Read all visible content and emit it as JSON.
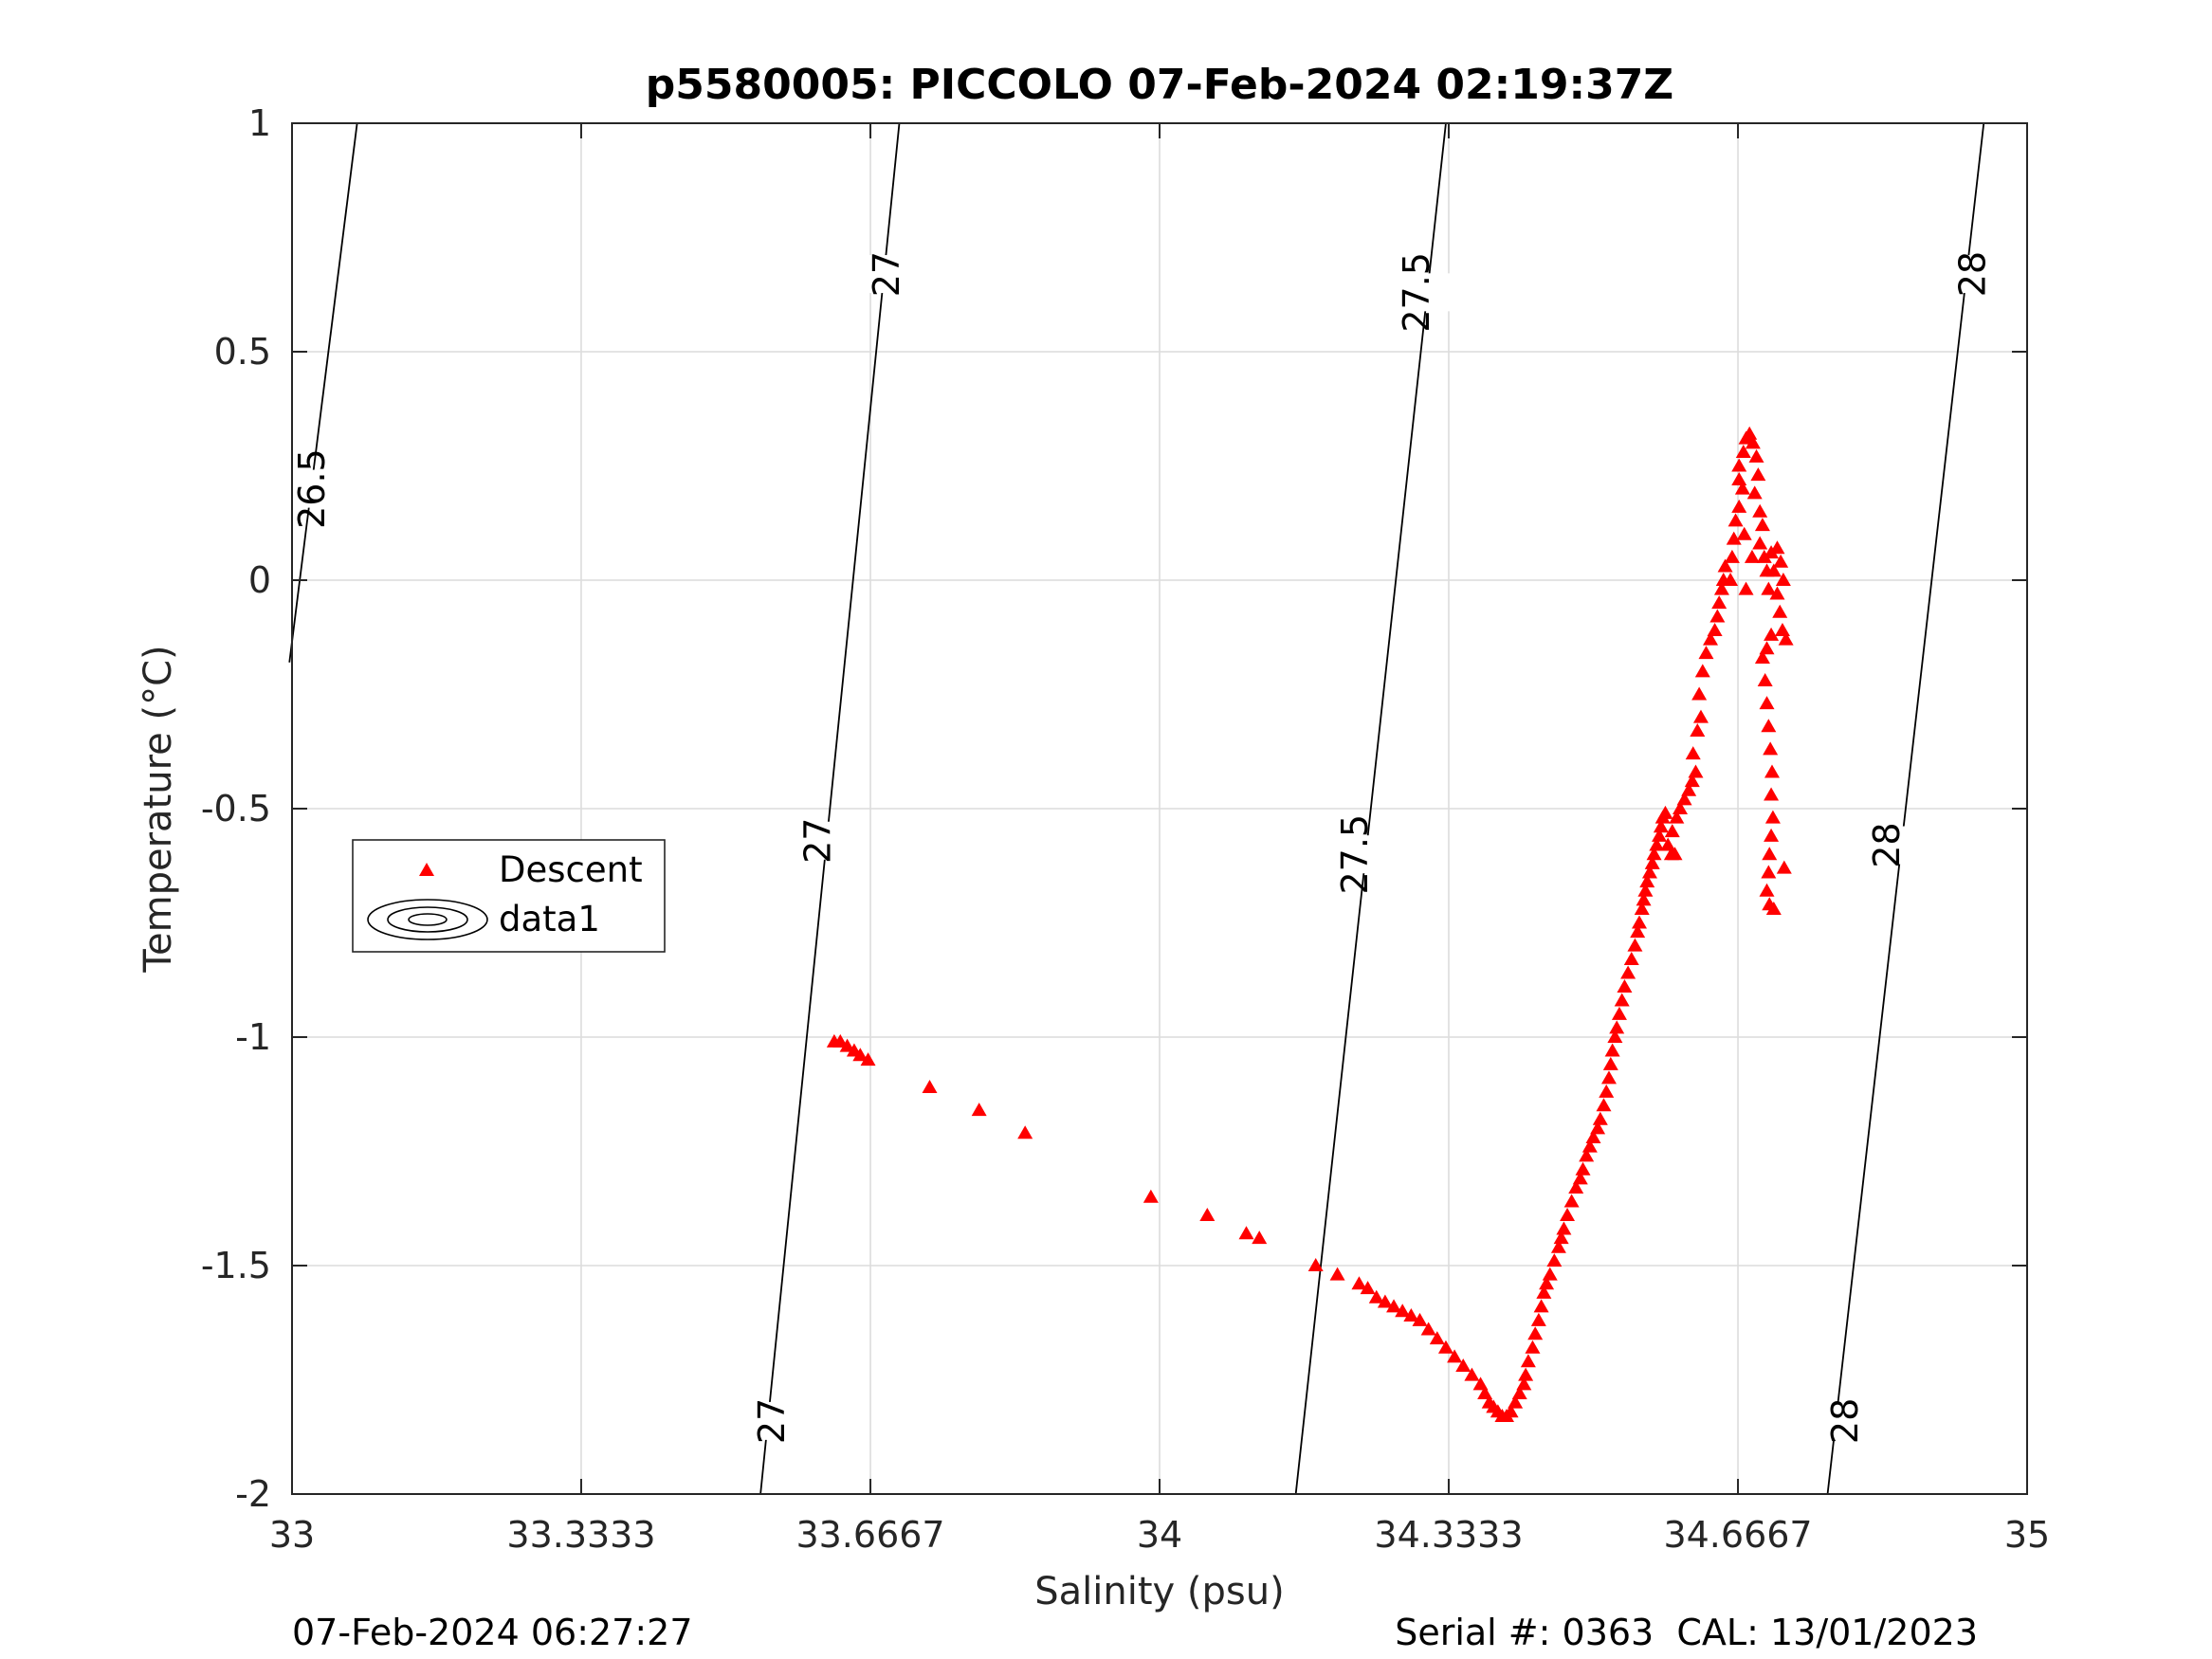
{
  "chart_data": {
    "type": "scatter",
    "title": "p5580005: PICCOLO 07-Feb-2024 02:19:37Z",
    "xlabel": "Salinity (psu)",
    "ylabel": "Temperature (°C)",
    "xlim": [
      33,
      35
    ],
    "ylim": [
      -2,
      1
    ],
    "xticks": [
      33,
      33.3333,
      33.6667,
      34,
      34.3333,
      34.6667,
      35
    ],
    "xtick_labels": [
      "33",
      "33.3333",
      "33.6667",
      "34",
      "34.3333",
      "34.6667",
      "35"
    ],
    "yticks": [
      -2,
      -1.5,
      -1,
      -0.5,
      0,
      0.5,
      1
    ],
    "ytick_labels": [
      "-2",
      "-1.5",
      "-1",
      "-0.5",
      "0",
      "0.5",
      "1"
    ],
    "grid": true,
    "legend": {
      "placement": "middle-left",
      "entries": [
        {
          "label": "Descent",
          "marker": "triangle",
          "color": "#ff0000"
        },
        {
          "label": "data1",
          "marker": "contour",
          "color": "#000000"
        }
      ]
    },
    "density_contours": [
      {
        "level": "26.5",
        "points": [
          [
            32.997,
            -0.18
          ],
          [
            33.075,
            1.0
          ]
        ]
      },
      {
        "level": "27",
        "points": [
          [
            33.54,
            -2.0
          ],
          [
            33.7,
            1.0
          ]
        ]
      },
      {
        "level": "27.5",
        "points": [
          [
            34.157,
            -2.0
          ],
          [
            34.33,
            1.0
          ]
        ]
      },
      {
        "level": "28",
        "points": [
          [
            34.77,
            -2.0
          ],
          [
            34.95,
            1.0
          ]
        ]
      }
    ],
    "contour_labels": [
      {
        "text": "26.5",
        "x": 33.023,
        "y": 0.2
      },
      {
        "text": "27",
        "x": 33.685,
        "y": 0.67
      },
      {
        "text": "27",
        "x": 33.606,
        "y": -0.57
      },
      {
        "text": "27",
        "x": 33.553,
        "y": -1.84
      },
      {
        "text": "27.5",
        "x": 34.296,
        "y": 0.63
      },
      {
        "text": "27.5",
        "x": 34.225,
        "y": -0.6
      },
      {
        "text": "28",
        "x": 34.937,
        "y": 0.67
      },
      {
        "text": "28",
        "x": 34.838,
        "y": -0.58
      },
      {
        "text": "28",
        "x": 34.79,
        "y": -1.84
      }
    ],
    "series": [
      {
        "name": "Descent",
        "color": "#ff0000",
        "marker": "triangle",
        "points": [
          [
            33.625,
            -1.01
          ],
          [
            33.632,
            -1.01
          ],
          [
            33.64,
            -1.02
          ],
          [
            33.648,
            -1.03
          ],
          [
            33.655,
            -1.04
          ],
          [
            33.664,
            -1.05
          ],
          [
            33.735,
            -1.11
          ],
          [
            33.792,
            -1.16
          ],
          [
            33.845,
            -1.21
          ],
          [
            33.99,
            -1.35
          ],
          [
            34.055,
            -1.39
          ],
          [
            34.1,
            -1.43
          ],
          [
            34.115,
            -1.44
          ],
          [
            34.18,
            -1.5
          ],
          [
            34.205,
            -1.52
          ],
          [
            34.23,
            -1.54
          ],
          [
            34.24,
            -1.55
          ],
          [
            34.25,
            -1.57
          ],
          [
            34.26,
            -1.58
          ],
          [
            34.27,
            -1.59
          ],
          [
            34.28,
            -1.6
          ],
          [
            34.29,
            -1.61
          ],
          [
            34.3,
            -1.62
          ],
          [
            34.31,
            -1.64
          ],
          [
            34.32,
            -1.66
          ],
          [
            34.33,
            -1.68
          ],
          [
            34.34,
            -1.7
          ],
          [
            34.35,
            -1.72
          ],
          [
            34.36,
            -1.74
          ],
          [
            34.37,
            -1.76
          ],
          [
            34.375,
            -1.78
          ],
          [
            34.38,
            -1.8
          ],
          [
            34.385,
            -1.81
          ],
          [
            34.39,
            -1.82
          ],
          [
            34.395,
            -1.83
          ],
          [
            34.4,
            -1.83
          ],
          [
            34.405,
            -1.82
          ],
          [
            34.41,
            -1.8
          ],
          [
            34.415,
            -1.78
          ],
          [
            34.42,
            -1.76
          ],
          [
            34.422,
            -1.74
          ],
          [
            34.425,
            -1.71
          ],
          [
            34.43,
            -1.68
          ],
          [
            34.433,
            -1.65
          ],
          [
            34.437,
            -1.62
          ],
          [
            34.44,
            -1.59
          ],
          [
            34.443,
            -1.56
          ],
          [
            34.446,
            -1.54
          ],
          [
            34.45,
            -1.52
          ],
          [
            34.455,
            -1.49
          ],
          [
            34.46,
            -1.46
          ],
          [
            34.463,
            -1.44
          ],
          [
            34.466,
            -1.42
          ],
          [
            34.47,
            -1.39
          ],
          [
            34.475,
            -1.36
          ],
          [
            34.48,
            -1.33
          ],
          [
            34.485,
            -1.31
          ],
          [
            34.488,
            -1.29
          ],
          [
            34.492,
            -1.26
          ],
          [
            34.496,
            -1.24
          ],
          [
            34.5,
            -1.22
          ],
          [
            34.505,
            -1.2
          ],
          [
            34.508,
            -1.18
          ],
          [
            34.512,
            -1.15
          ],
          [
            34.515,
            -1.12
          ],
          [
            34.518,
            -1.09
          ],
          [
            34.52,
            -1.06
          ],
          [
            34.522,
            -1.03
          ],
          [
            34.525,
            -1.0
          ],
          [
            34.527,
            -0.98
          ],
          [
            34.53,
            -0.95
          ],
          [
            34.533,
            -0.92
          ],
          [
            34.536,
            -0.89
          ],
          [
            34.54,
            -0.86
          ],
          [
            34.544,
            -0.83
          ],
          [
            34.548,
            -0.8
          ],
          [
            34.551,
            -0.77
          ],
          [
            34.553,
            -0.75
          ],
          [
            34.556,
            -0.72
          ],
          [
            34.558,
            -0.7
          ],
          [
            34.56,
            -0.68
          ],
          [
            34.562,
            -0.66
          ],
          [
            34.565,
            -0.64
          ],
          [
            34.568,
            -0.62
          ],
          [
            34.57,
            -0.6
          ],
          [
            34.573,
            -0.58
          ],
          [
            34.576,
            -0.56
          ],
          [
            34.578,
            -0.54
          ],
          [
            34.58,
            -0.52
          ],
          [
            34.583,
            -0.51
          ],
          [
            34.586,
            -0.58
          ],
          [
            34.59,
            -0.6
          ],
          [
            34.594,
            -0.6
          ],
          [
            34.591,
            -0.55
          ],
          [
            34.596,
            -0.52
          ],
          [
            34.6,
            -0.5
          ],
          [
            34.605,
            -0.48
          ],
          [
            34.61,
            -0.46
          ],
          [
            34.614,
            -0.44
          ],
          [
            34.618,
            -0.42
          ],
          [
            34.615,
            -0.38
          ],
          [
            34.62,
            -0.33
          ],
          [
            34.624,
            -0.3
          ],
          [
            34.622,
            -0.25
          ],
          [
            34.626,
            -0.2
          ],
          [
            34.63,
            -0.16
          ],
          [
            34.635,
            -0.13
          ],
          [
            34.64,
            -0.11
          ],
          [
            34.643,
            -0.08
          ],
          [
            34.645,
            -0.05
          ],
          [
            34.648,
            -0.02
          ],
          [
            34.65,
            0.0
          ],
          [
            34.652,
            0.03
          ],
          [
            34.658,
            0.0
          ],
          [
            34.66,
            0.05
          ],
          [
            34.662,
            0.09
          ],
          [
            34.664,
            0.13
          ],
          [
            34.668,
            0.16
          ],
          [
            34.672,
            0.2
          ],
          [
            34.668,
            0.25
          ],
          [
            34.673,
            0.28
          ],
          [
            34.676,
            0.31
          ],
          [
            34.68,
            0.32
          ],
          [
            34.684,
            0.3
          ],
          [
            34.688,
            0.27
          ],
          [
            34.69,
            0.23
          ],
          [
            34.686,
            0.19
          ],
          [
            34.692,
            0.15
          ],
          [
            34.695,
            0.12
          ],
          [
            34.692,
            0.08
          ],
          [
            34.697,
            0.05
          ],
          [
            34.7,
            0.02
          ],
          [
            34.702,
            -0.02
          ],
          [
            34.705,
            0.06
          ],
          [
            34.708,
            0.02
          ],
          [
            34.712,
            -0.03
          ],
          [
            34.715,
            -0.07
          ],
          [
            34.718,
            -0.11
          ],
          [
            34.722,
            -0.13
          ],
          [
            34.719,
            0.0
          ],
          [
            34.716,
            0.04
          ],
          [
            34.712,
            0.07
          ],
          [
            34.705,
            -0.12
          ],
          [
            34.7,
            -0.15
          ],
          [
            34.695,
            -0.17
          ],
          [
            34.698,
            -0.22
          ],
          [
            34.7,
            -0.27
          ],
          [
            34.702,
            -0.32
          ],
          [
            34.704,
            -0.37
          ],
          [
            34.706,
            -0.42
          ],
          [
            34.705,
            -0.47
          ],
          [
            34.707,
            -0.52
          ],
          [
            34.705,
            -0.56
          ],
          [
            34.703,
            -0.6
          ],
          [
            34.702,
            -0.64
          ],
          [
            34.7,
            -0.68
          ],
          [
            34.703,
            -0.71
          ],
          [
            34.708,
            -0.72
          ],
          [
            34.72,
            -0.63
          ],
          [
            34.668,
            0.22
          ],
          [
            34.674,
            0.1
          ],
          [
            34.683,
            0.05
          ],
          [
            34.676,
            -0.02
          ]
        ]
      }
    ],
    "footer_left": "07-Feb-2024 06:27:27",
    "footer_right": "Serial #: 0363  CAL: 13/01/2023"
  }
}
